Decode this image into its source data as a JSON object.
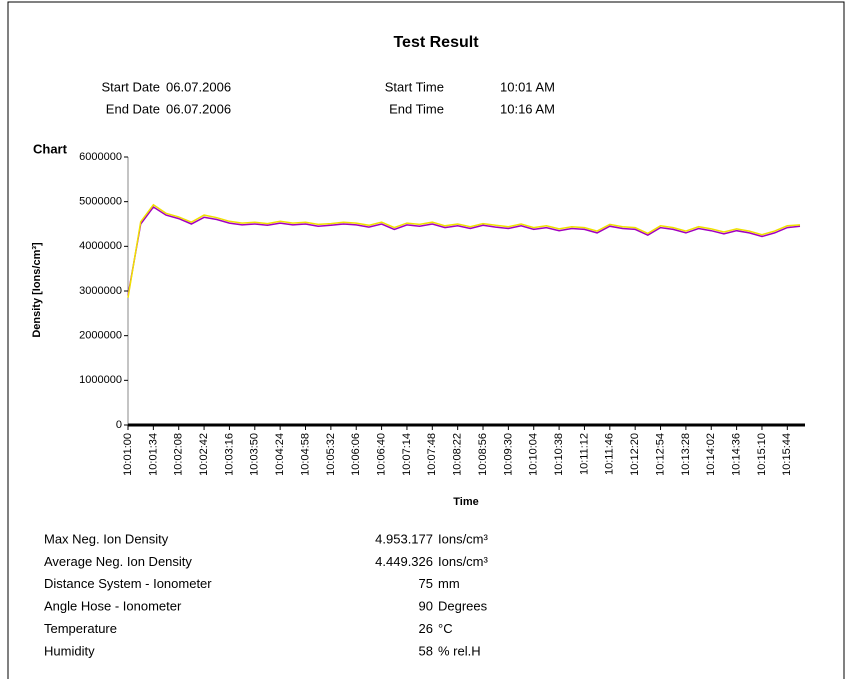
{
  "header": {
    "title": "Test Result",
    "rows": [
      [
        "Start Date",
        "06.07.2006",
        "Start Time",
        "10:01 AM"
      ],
      [
        "End Date",
        "06.07.2006",
        "End Time",
        "10:16 AM"
      ]
    ]
  },
  "chart_data": {
    "type": "line",
    "title": "Chart",
    "x_label": "Time",
    "y_label": "Density [Ions/cm³]",
    "categories": [
      "10:01:00",
      null,
      "10:01:34",
      null,
      "10:02:08",
      null,
      "10:02:42",
      null,
      "10:03:16",
      null,
      "10:03:50",
      null,
      "10:04:24",
      null,
      "10:04:58",
      null,
      "10:05:32",
      null,
      "10:06:06",
      null,
      "10:06:40",
      null,
      "10:07:14",
      null,
      "10:07:48",
      null,
      "10:08:22",
      null,
      "10:08:56",
      null,
      "10:09:30",
      null,
      "10:10:04",
      null,
      "10:10:38",
      null,
      "10:11:12",
      null,
      "10:11:46",
      null,
      "10:12:20",
      null,
      "10:12:54",
      null,
      "10:13:28",
      null,
      "10:14:02",
      null,
      "10:14:36",
      null,
      "10:15:10",
      null,
      "10:15:44",
      null
    ],
    "series": [
      {
        "color": "#a000c0",
        "values": [
          2900000,
          4500000,
          4880000,
          4700000,
          4620000,
          4500000,
          4650000,
          4600000,
          4520000,
          4480000,
          4500000,
          4470000,
          4520000,
          4480000,
          4500000,
          4450000,
          4470000,
          4500000,
          4480000,
          4430000,
          4500000,
          4380000,
          4480000,
          4450000,
          4500000,
          4420000,
          4460000,
          4400000,
          4470000,
          4430000,
          4400000,
          4460000,
          4380000,
          4420000,
          4350000,
          4400000,
          4380000,
          4300000,
          4450000,
          4400000,
          4380000,
          4250000,
          4420000,
          4380000,
          4300000,
          4400000,
          4350000,
          4280000,
          4350000,
          4300000,
          4220000,
          4300000,
          4420000,
          4450000
        ]
      },
      {
        "color": "#f0e000",
        "values": [
          2850000,
          4550000,
          4930000,
          4740000,
          4660000,
          4540000,
          4700000,
          4640000,
          4560000,
          4520000,
          4540000,
          4510000,
          4560000,
          4520000,
          4540000,
          4490000,
          4510000,
          4540000,
          4520000,
          4470000,
          4540000,
          4420000,
          4520000,
          4490000,
          4540000,
          4460000,
          4500000,
          4440000,
          4510000,
          4470000,
          4440000,
          4500000,
          4420000,
          4460000,
          4390000,
          4440000,
          4420000,
          4340000,
          4490000,
          4440000,
          4420000,
          4290000,
          4460000,
          4420000,
          4340000,
          4440000,
          4390000,
          4320000,
          4390000,
          4340000,
          4260000,
          4340000,
          4460000,
          4480000
        ]
      }
    ],
    "ylim": [
      0,
      6000000
    ],
    "yticks": [
      0,
      1000000,
      2000000,
      3000000,
      4000000,
      5000000,
      6000000
    ],
    "grid": false
  },
  "stats": [
    [
      "Max Neg. Ion Density",
      "4.953.177",
      "Ions/cm³"
    ],
    [
      "Average Neg. Ion Density",
      "4.449.326",
      "Ions/cm³"
    ],
    [
      "Distance System  -  Ionometer",
      "75",
      "mm"
    ],
    [
      "Angle Hose - Ionometer",
      "90",
      "Degrees"
    ],
    [
      "Temperature",
      "26",
      "°C"
    ],
    [
      "Humidity",
      "58",
      "% rel.H"
    ]
  ]
}
